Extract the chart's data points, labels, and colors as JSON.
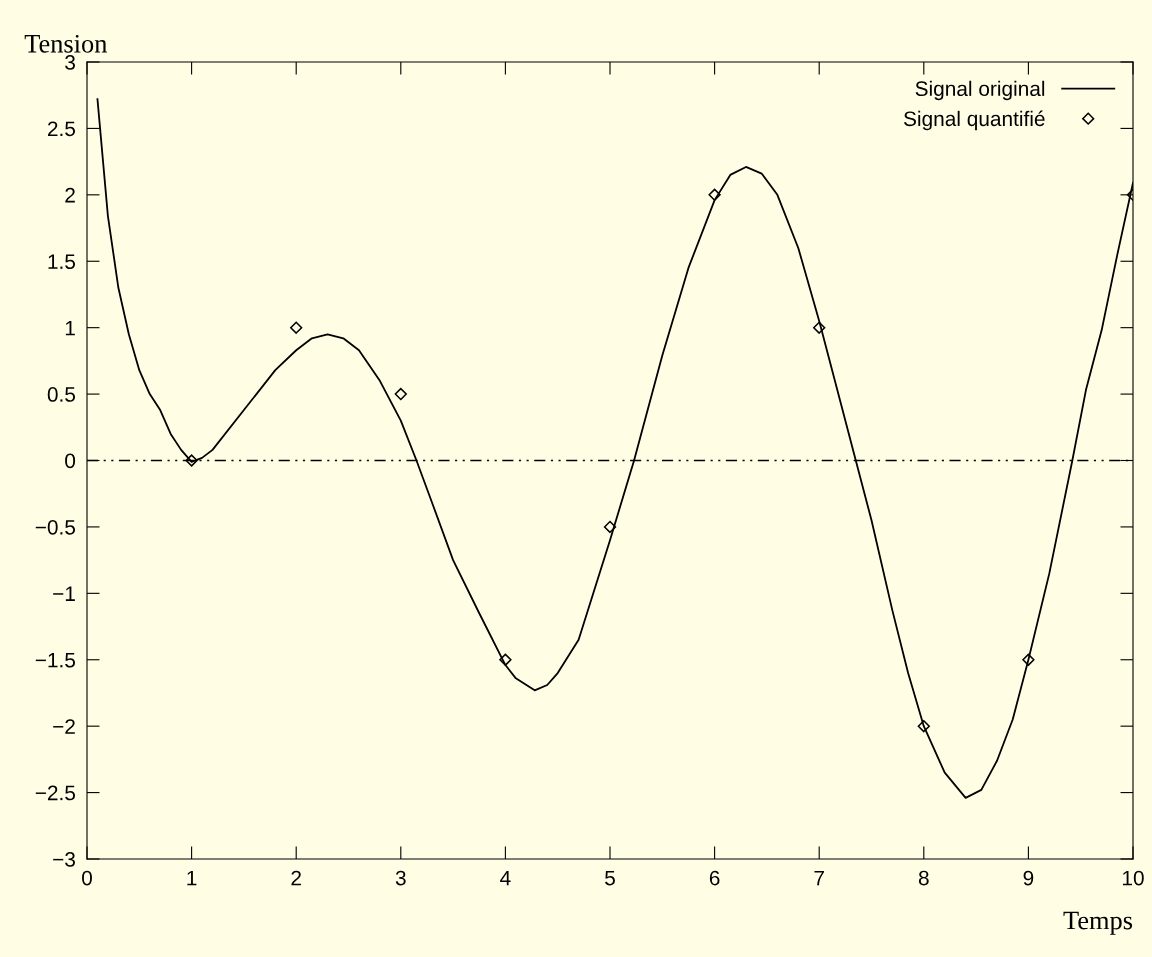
{
  "chart_data": {
    "type": "line",
    "xlabel": "Temps",
    "ylabel": "Tension",
    "xlim": [
      0,
      10
    ],
    "ylim": [
      -3,
      3
    ],
    "xticks": [
      0,
      1,
      2,
      3,
      4,
      5,
      6,
      7,
      8,
      9,
      10
    ],
    "yticks": [
      {
        "value": -3,
        "label": "−3"
      },
      {
        "value": -2.5,
        "label": "−2.5"
      },
      {
        "value": -2,
        "label": "−2"
      },
      {
        "value": -1.5,
        "label": "−1.5"
      },
      {
        "value": -1,
        "label": "−1"
      },
      {
        "value": -0.5,
        "label": "−0.5"
      },
      0,
      0.5,
      1,
      1.5,
      2,
      2.5,
      3
    ],
    "grid": false,
    "legend": "top right",
    "ref_lines": [
      {
        "axis": "y",
        "value": 0,
        "color": "#000000",
        "line_style": "dashdot"
      }
    ],
    "series": [
      {
        "name": "Signal original",
        "color": "#000000",
        "marker": "none",
        "line_style": "solid",
        "x": [
          0.1,
          0.2,
          0.3,
          0.4,
          0.5,
          0.6,
          0.7,
          0.8,
          0.9,
          1.0,
          1.1,
          1.2,
          1.5,
          1.8,
          2.0,
          2.15,
          2.3,
          2.45,
          2.6,
          2.8,
          3.0,
          3.15,
          3.3,
          3.5,
          3.75,
          4.0,
          4.1,
          4.28,
          4.4,
          4.5,
          4.7,
          5.0,
          5.23,
          5.5,
          5.75,
          6.0,
          6.15,
          6.3,
          6.45,
          6.6,
          6.8,
          7.0,
          7.15,
          7.35,
          7.5,
          7.7,
          7.85,
          8.0,
          8.2,
          8.4,
          8.55,
          8.7,
          8.85,
          9.0,
          9.2,
          9.42,
          9.55,
          9.7,
          9.85,
          10.0
        ],
        "values": [
          2.72,
          1.84,
          1.3,
          0.95,
          0.68,
          0.5,
          0.38,
          0.2,
          0.08,
          -0.01,
          0.02,
          0.08,
          0.38,
          0.68,
          0.83,
          0.92,
          0.95,
          0.92,
          0.83,
          0.6,
          0.3,
          0.0,
          -0.32,
          -0.75,
          -1.15,
          -1.54,
          -1.64,
          -1.73,
          -1.69,
          -1.6,
          -1.35,
          -0.6,
          0.0,
          0.79,
          1.45,
          1.96,
          2.15,
          2.21,
          2.16,
          2.0,
          1.6,
          1.05,
          0.6,
          0.0,
          -0.45,
          -1.13,
          -1.6,
          -2.0,
          -2.35,
          -2.54,
          -2.48,
          -2.26,
          -1.95,
          -1.5,
          -0.85,
          0.0,
          0.53,
          0.98,
          1.55,
          2.09
        ]
      },
      {
        "name": "Signal quantifié",
        "type": "scatter",
        "color": "#000000",
        "marker": "diamond",
        "x": [
          1,
          2,
          3,
          4,
          5,
          6,
          7,
          8,
          9,
          10
        ],
        "values": [
          0,
          1,
          0.5,
          -1.5,
          -0.5,
          2,
          1,
          -2,
          -1.5,
          2
        ]
      }
    ]
  }
}
